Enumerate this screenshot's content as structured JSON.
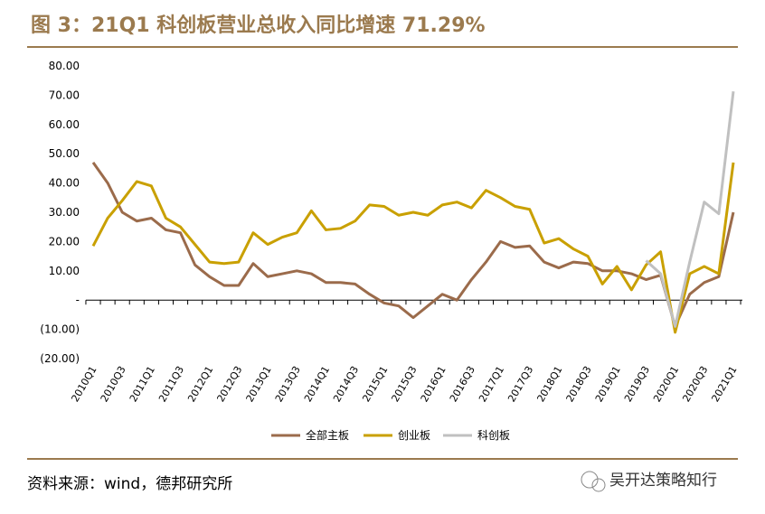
{
  "chart_data": {
    "type": "line",
    "title": "图 3：21Q1 科创板营业总收入同比增速 71.29%",
    "source": "资料来源：wind，德邦研究所",
    "watermark": "吴开达策略知行",
    "categories": [
      "2010Q1",
      null,
      "2010Q3",
      null,
      "2011Q1",
      null,
      "2011Q3",
      null,
      "2012Q1",
      null,
      "2012Q3",
      null,
      "2013Q1",
      null,
      "2013Q3",
      null,
      "2014Q1",
      null,
      "2014Q3",
      null,
      "2015Q1",
      null,
      "2015Q3",
      null,
      "2016Q1",
      null,
      "2016Q3",
      null,
      "2017Q1",
      null,
      "2017Q3",
      null,
      "2018Q1",
      null,
      "2018Q3",
      null,
      "2019Q1",
      null,
      "2019Q3",
      null,
      "2020Q1",
      null,
      "2020Q3",
      null,
      "2021Q1"
    ],
    "series": [
      {
        "name": "全部主板",
        "color": "#9b6b4b",
        "values": [
          47,
          40,
          30,
          27,
          28,
          24,
          23,
          12,
          8,
          5,
          5,
          12.5,
          8,
          9,
          10,
          9,
          6,
          6,
          5.5,
          2,
          -1,
          -2,
          -6,
          -2,
          2,
          0,
          7,
          13,
          20,
          18,
          18.5,
          13,
          11,
          13,
          12.5,
          10,
          10,
          9,
          7,
          8.5,
          -9,
          2,
          6,
          8,
          30
        ]
      },
      {
        "name": "创业板",
        "color": "#c9a000",
        "values": [
          18.5,
          28,
          34,
          40.5,
          39,
          28,
          25,
          19,
          13,
          12.5,
          13,
          23,
          19,
          21.5,
          23,
          30.5,
          24,
          24.5,
          27,
          32.5,
          32,
          29,
          30,
          29,
          32.5,
          33.5,
          31.5,
          37.5,
          35,
          32,
          31,
          19.5,
          21,
          17.5,
          15,
          5.5,
          11.5,
          3.5,
          12,
          16.5,
          -11,
          9,
          11.5,
          9,
          47
        ]
      },
      {
        "name": "科创板",
        "color": "#c0c0c0",
        "values": [
          null,
          null,
          null,
          null,
          null,
          null,
          null,
          null,
          null,
          null,
          null,
          null,
          null,
          null,
          null,
          null,
          null,
          null,
          null,
          null,
          null,
          null,
          null,
          null,
          null,
          null,
          null,
          null,
          null,
          null,
          null,
          null,
          null,
          null,
          null,
          null,
          null,
          null,
          13.5,
          9,
          -9,
          13,
          33.5,
          29.5,
          71.29
        ]
      }
    ],
    "ylim": [
      -20,
      80
    ],
    "yticks": [
      {
        "value": -20,
        "label": "(20.00)"
      },
      {
        "value": -10,
        "label": "(10.00)"
      },
      {
        "value": 0,
        "label": "-"
      },
      {
        "value": 10,
        "label": "10.00"
      },
      {
        "value": 20,
        "label": "20.00"
      },
      {
        "value": 30,
        "label": "30.00"
      },
      {
        "value": 40,
        "label": "40.00"
      },
      {
        "value": 50,
        "label": "50.00"
      },
      {
        "value": 60,
        "label": "60.00"
      },
      {
        "value": 70,
        "label": "70.00"
      },
      {
        "value": 80,
        "label": "80.00"
      }
    ],
    "legend": "bottom"
  }
}
